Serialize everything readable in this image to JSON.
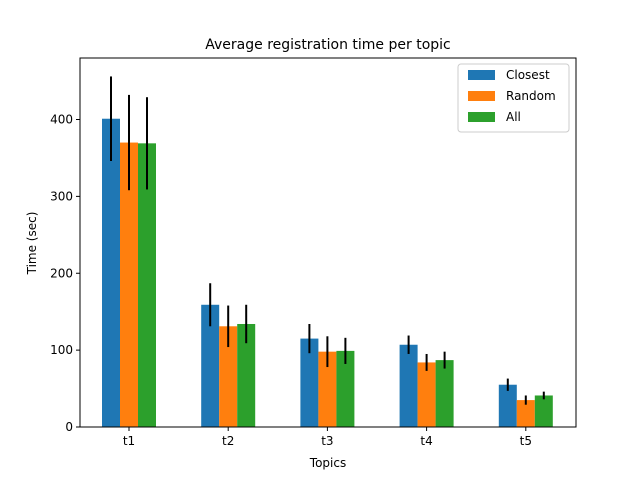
{
  "chart_data": {
    "type": "bar",
    "title": "Average registration time per topic",
    "xlabel": "Topics",
    "ylabel": "Time (sec)",
    "categories": [
      "t1",
      "t2",
      "t3",
      "t4",
      "t5"
    ],
    "ylim": [
      0,
      480
    ],
    "yticks": [
      0,
      100,
      200,
      300,
      400
    ],
    "grid": false,
    "legend_position": "top-right",
    "series": [
      {
        "name": "Closest",
        "color": "#1f77b4",
        "values": [
          401,
          159,
          115,
          107,
          55
        ],
        "errors": [
          55,
          28,
          19,
          12,
          8
        ]
      },
      {
        "name": "Random",
        "color": "#ff7f0e",
        "values": [
          370,
          131,
          98,
          84,
          35
        ],
        "errors": [
          62,
          27,
          20,
          11,
          6
        ]
      },
      {
        "name": "All",
        "color": "#2ca02c",
        "values": [
          369,
          134,
          99,
          87,
          41
        ],
        "errors": [
          60,
          25,
          17,
          11,
          5
        ]
      }
    ]
  }
}
